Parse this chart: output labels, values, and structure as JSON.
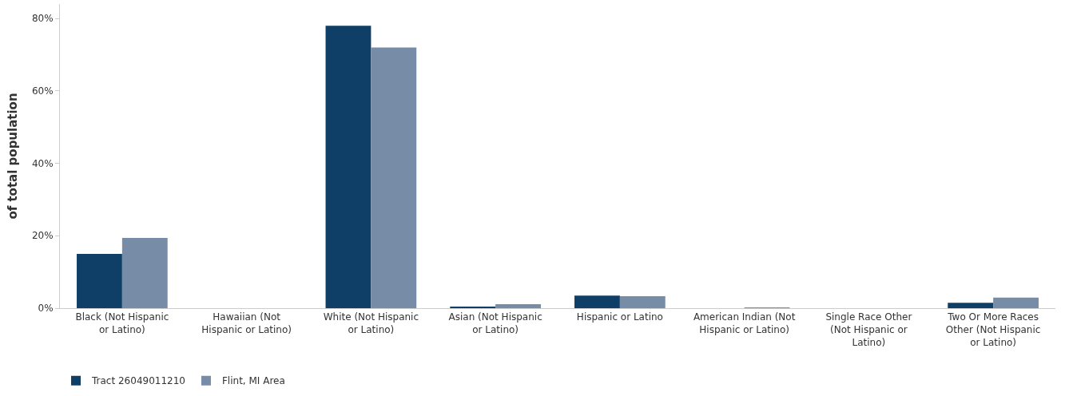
{
  "chart_data": {
    "type": "bar",
    "ylabel": "of total population",
    "categories": [
      "Black (Not Hispanic or Latino)",
      "Hawaiian (Not Hispanic or Latino)",
      "White (Not Hispanic or Latino)",
      "Asian (Not Hispanic or Latino)",
      "Hispanic or Latino",
      "American Indian (Not Hispanic or Latino)",
      "Single Race Other (Not Hispanic or Latino)",
      "Two Or More Races Other (Not Hispanic or Latino)"
    ],
    "series": [
      {
        "name": "Tract 26049011210",
        "color": "#0f3f66",
        "values": [
          15.0,
          0,
          78.0,
          0.4,
          3.5,
          0,
          0,
          1.5
        ]
      },
      {
        "name": "Flint, MI Area",
        "color": "#768ca7",
        "values": [
          19.4,
          0,
          72.0,
          1.1,
          3.3,
          0.2,
          0,
          2.9
        ]
      }
    ],
    "ylim": [
      0,
      84
    ],
    "yticks": [
      {
        "value": 0,
        "label": "0%"
      },
      {
        "value": 20,
        "label": "20%"
      },
      {
        "value": 40,
        "label": "40%"
      },
      {
        "value": 60,
        "label": "60%"
      },
      {
        "value": 80,
        "label": "80%"
      }
    ],
    "grid": false,
    "legend": "bottom left"
  }
}
